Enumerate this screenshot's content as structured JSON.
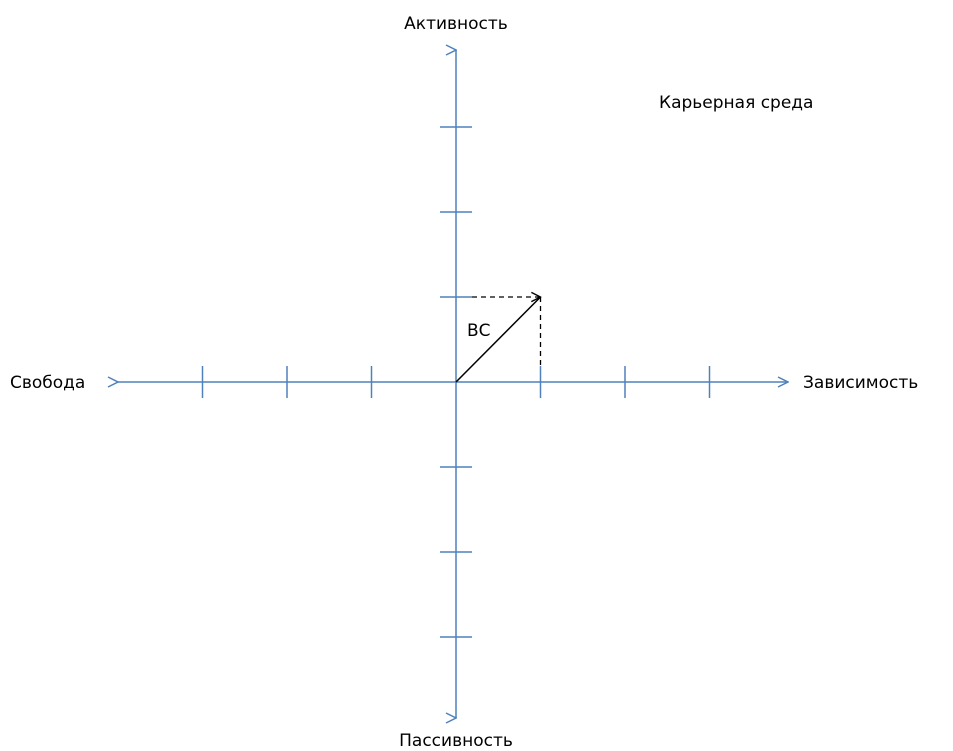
{
  "axes": {
    "top_label": "Активность",
    "bottom_label": "Пассивность",
    "left_label": "Свобода",
    "right_label": "Зависимость"
  },
  "title": "Карьерная среда",
  "vector": {
    "label": "ВС",
    "x": 1,
    "y": 1
  },
  "grid": {
    "ticks_per_half_axis": 3
  },
  "colors": {
    "axis": "#4f81bd",
    "vector": "#000000"
  }
}
